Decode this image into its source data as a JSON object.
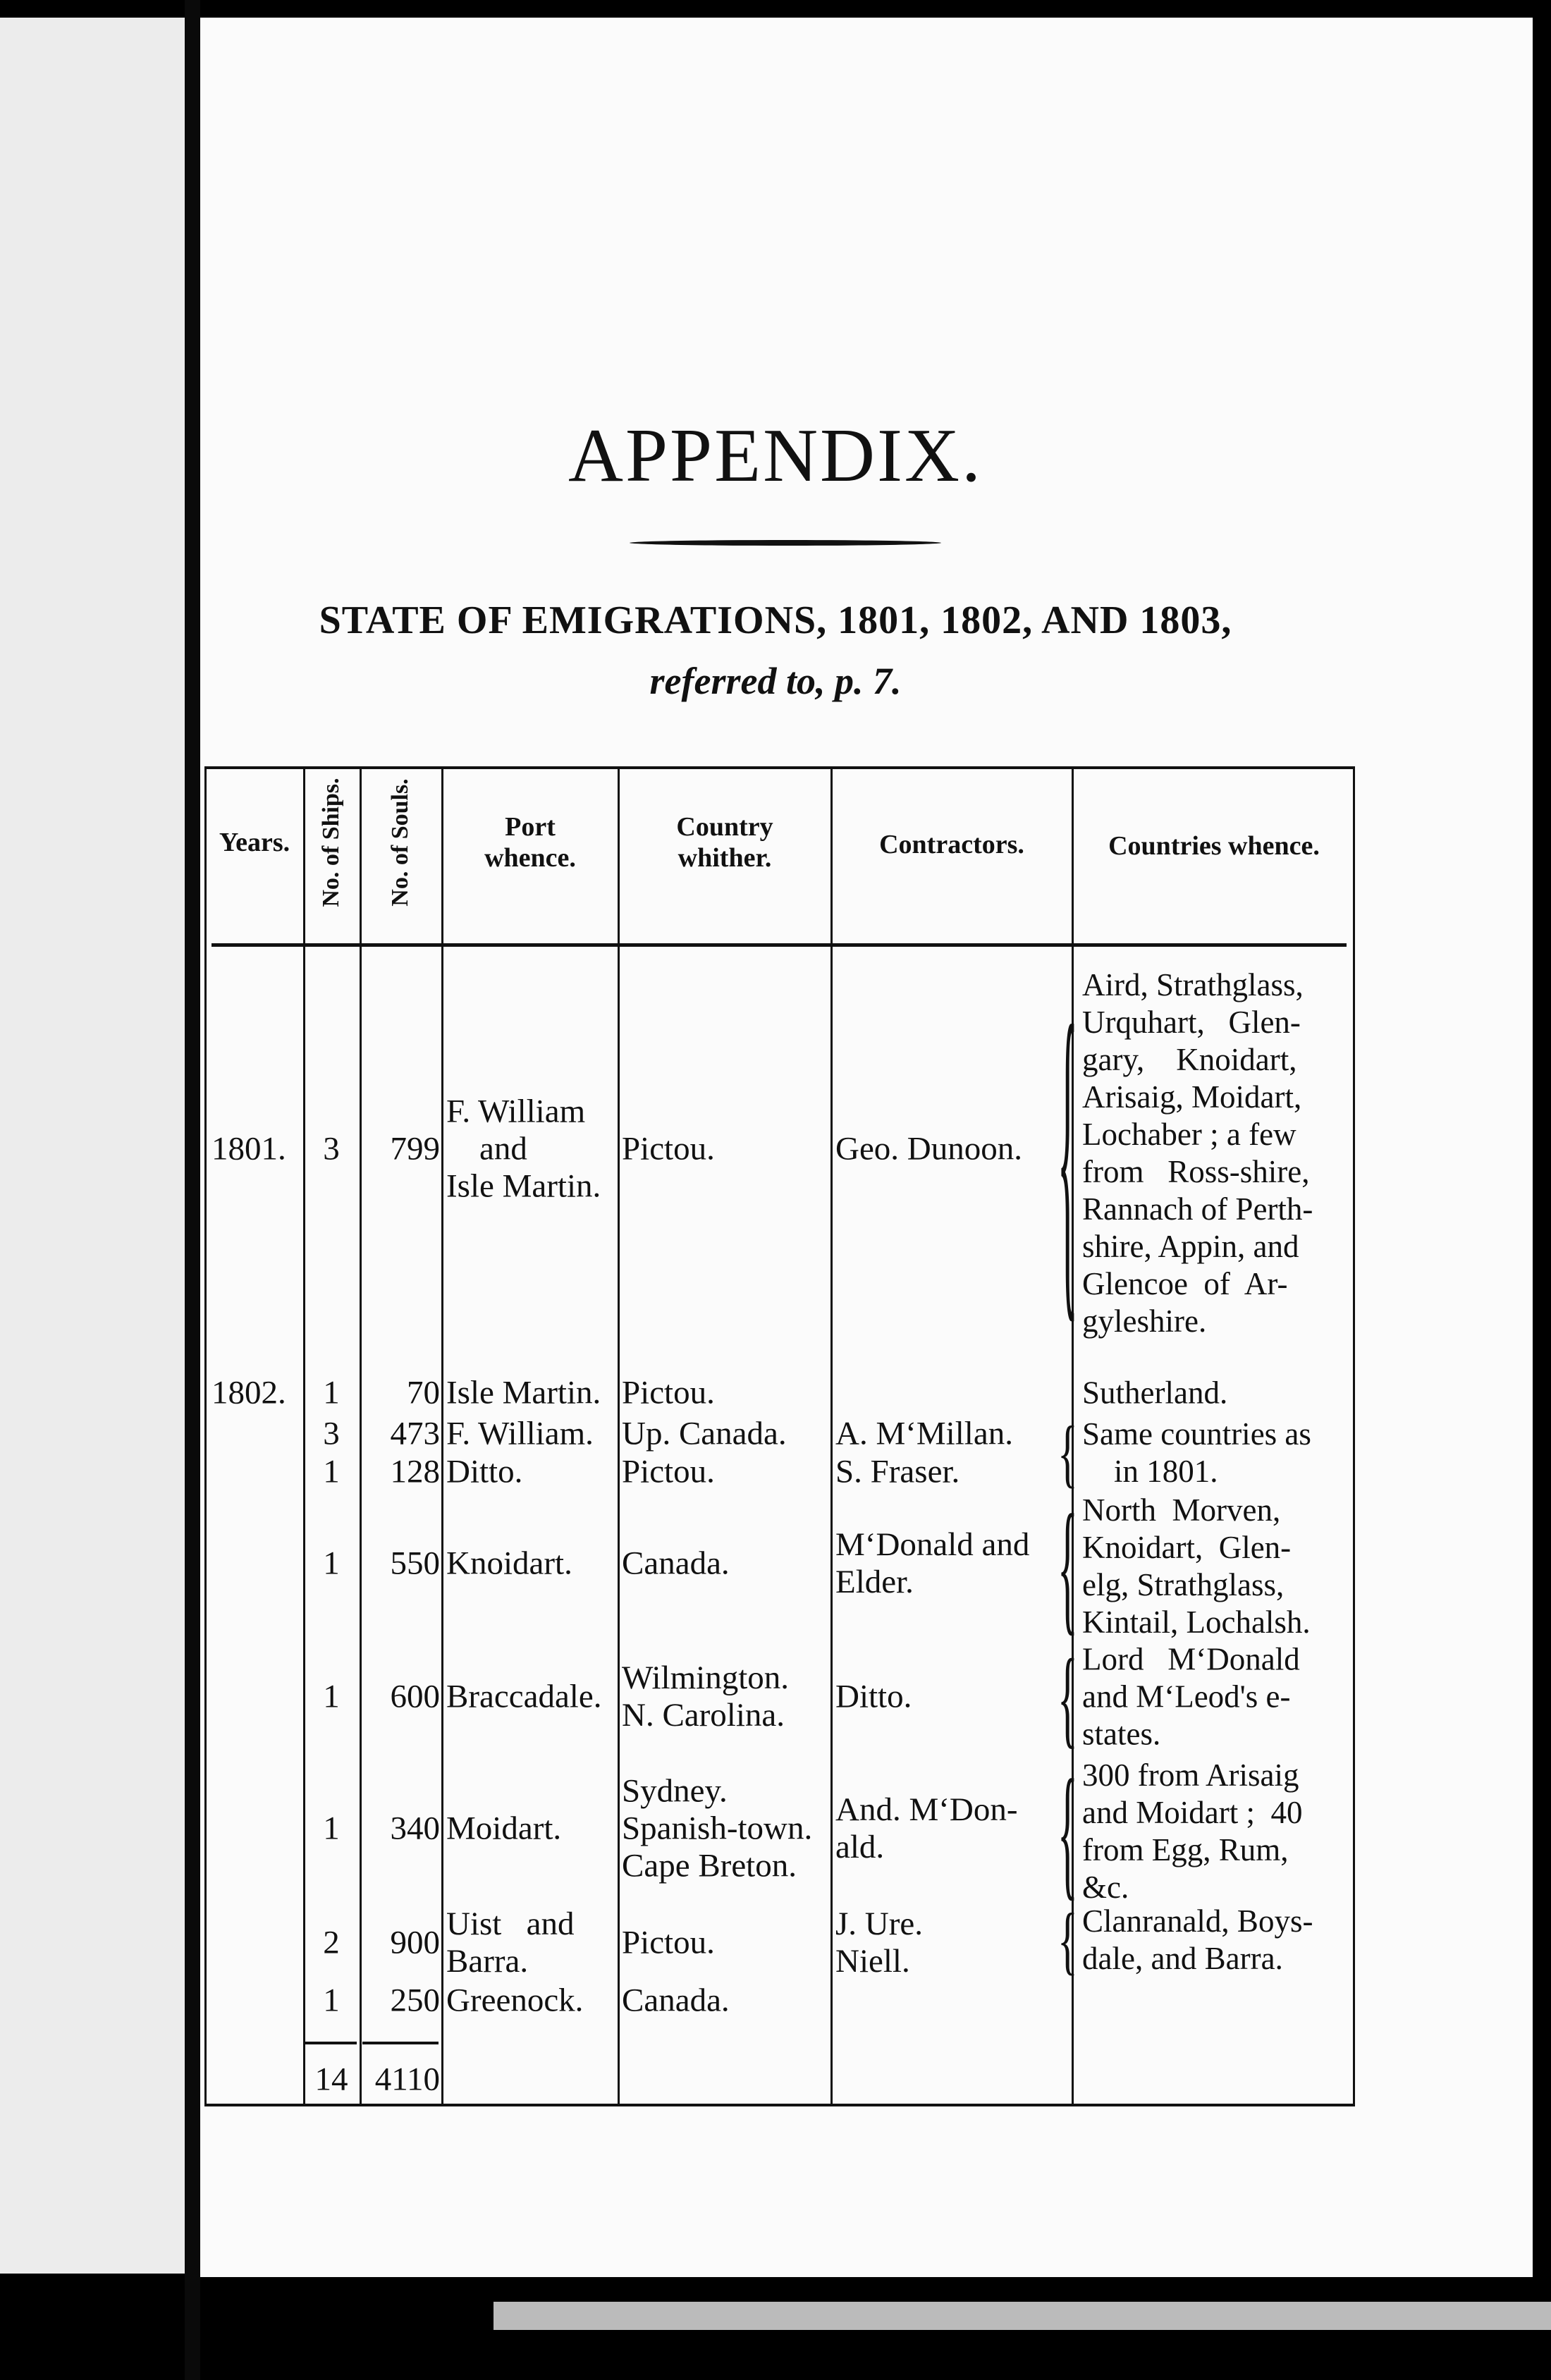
{
  "heading": {
    "title": "APPENDIX.",
    "subtitle": "STATE OF EMIGRATIONS, 1801, 1802, AND 1803,",
    "reference": "referred to, p. 7."
  },
  "table": {
    "headers": {
      "years": "Years.",
      "ships": "No. of Ships.",
      "souls": "No. of Souls.",
      "port": "Port\nwhence.",
      "country": "Country\nwhither.",
      "contractors": "Contractors.",
      "whence": "Countries whence."
    },
    "rows": [
      {
        "year": "1801.",
        "ships": "3",
        "souls": "799",
        "port": "F. William\n    and\nIsle Martin.",
        "country": "Pictou.",
        "contractor": "Geo. Dunoon.",
        "whence": "Aird, Strathglass,\nUrquhart,   Glen-\ngary,    Knoidart,\nArisaig, Moidart,\nLochaber ; a few\nfrom   Ross-shire,\nRannach of Perth-\nshire, Appin, and\nGlencoe  of  Ar-\ngyleshire."
      },
      {
        "year": "1802.",
        "ships": "1",
        "souls": "70",
        "port": "Isle Martin.",
        "country": "Pictou.",
        "contractor": "",
        "whence": "Sutherland."
      },
      {
        "ships": "3",
        "souls": "473",
        "port": "F. William.",
        "country": "Up. Canada.",
        "contractor": "A. M‘Millan.",
        "whence": "Same countries as\n    in 1801."
      },
      {
        "ships": "1",
        "souls": "128",
        "port": "Ditto.",
        "country": "Pictou.",
        "contractor": "S. Fraser."
      },
      {
        "ships": "1",
        "souls": "550",
        "port": "Knoidart.",
        "country": "Canada.",
        "contractor": "M‘Donald and\nElder.",
        "whence": "North  Morven,\nKnoidart,  Glen-\nelg, Strathglass,\nKintail, Lochalsh."
      },
      {
        "ships": "1",
        "souls": "600",
        "port": "Braccadale.",
        "country": "Wilmington.\nN. Carolina.",
        "contractor": "Ditto.",
        "whence": "Lord   M‘Donald\nand M‘Leod's e-\nstates."
      },
      {
        "ships": "1",
        "souls": "340",
        "port": "Moidart.",
        "country": "Sydney.\nSpanish-town.\nCape Breton.",
        "contractor": "And. M‘Don-\nald.",
        "whence": "300 from Arisaig\nand Moidart ;  40\nfrom Egg, Rum,\n&c."
      },
      {
        "ships": "2",
        "souls": "900",
        "port": "Uist   and\nBarra.",
        "country": "Pictou.",
        "contractor": "J. Ure.\nNiell.",
        "whence": "Clanranald, Boys-\ndale, and Barra."
      },
      {
        "ships": "1",
        "souls": "250",
        "port": "Greenock.",
        "country": "Canada."
      }
    ],
    "totals": {
      "ships": "14",
      "souls": "4110"
    }
  }
}
